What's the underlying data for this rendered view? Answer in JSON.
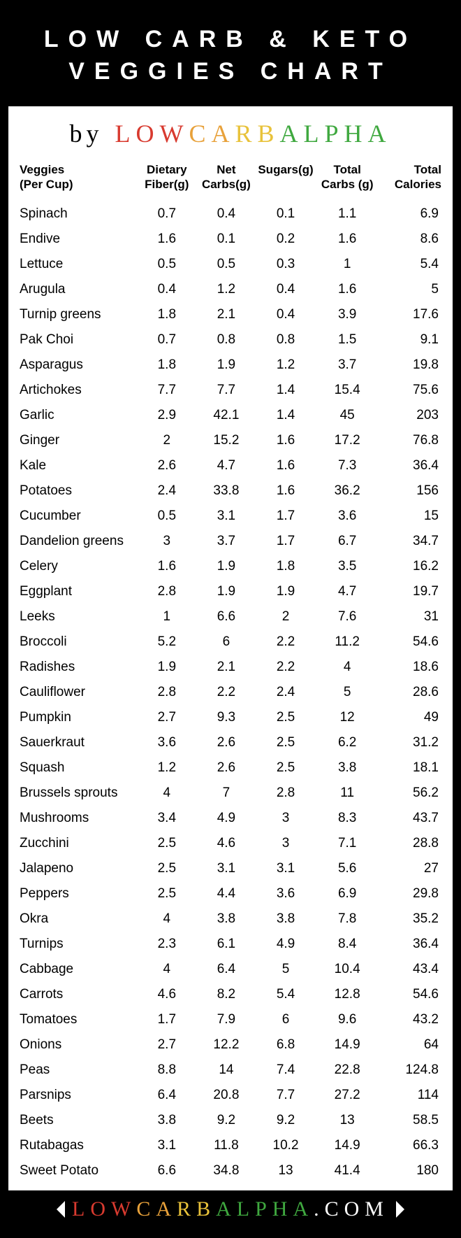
{
  "title": {
    "line1": "LOW CARB & KETO",
    "line2": "VEGGIES CHART"
  },
  "byline": {
    "by": "by",
    "brand_colored": [
      {
        "t": "L",
        "c": "#d83a2f"
      },
      {
        "t": "O",
        "c": "#d83a2f"
      },
      {
        "t": "W",
        "c": "#d83a2f"
      },
      {
        "t": "C",
        "c": "#e8a13a"
      },
      {
        "t": "A",
        "c": "#e8a13a"
      },
      {
        "t": "R",
        "c": "#e8c23a"
      },
      {
        "t": "B",
        "c": "#e8c23a"
      },
      {
        "t": "A",
        "c": "#3fa83f"
      },
      {
        "t": "L",
        "c": "#3fa83f"
      },
      {
        "t": "P",
        "c": "#3fa83f"
      },
      {
        "t": "H",
        "c": "#3fa83f"
      },
      {
        "t": "A",
        "c": "#3fa83f"
      }
    ]
  },
  "columns": [
    {
      "key": "name",
      "label": "Veggies\n(Per Cup)",
      "align": "left",
      "width": "28%"
    },
    {
      "key": "fiber",
      "label": "Dietary\nFiber(g)",
      "align": "center",
      "width": "14%"
    },
    {
      "key": "net",
      "label": "Net\nCarbs(g)",
      "align": "center",
      "width": "14%"
    },
    {
      "key": "sugars",
      "label": "Sugars(g)",
      "align": "center",
      "width": "14%"
    },
    {
      "key": "total",
      "label": "Total\nCarbs (g)",
      "align": "center",
      "width": "15%"
    },
    {
      "key": "cal",
      "label": "Total\nCalories",
      "align": "right",
      "width": "15%"
    }
  ],
  "rows": [
    {
      "name": "Spinach",
      "fiber": "0.7",
      "net": "0.4",
      "sugars": "0.1",
      "total": "1.1",
      "cal": "6.9"
    },
    {
      "name": "Endive",
      "fiber": "1.6",
      "net": "0.1",
      "sugars": "0.2",
      "total": "1.6",
      "cal": "8.6"
    },
    {
      "name": "Lettuce",
      "fiber": "0.5",
      "net": "0.5",
      "sugars": "0.3",
      "total": "1",
      "cal": "5.4"
    },
    {
      "name": "Arugula",
      "fiber": "0.4",
      "net": "1.2",
      "sugars": "0.4",
      "total": "1.6",
      "cal": "5"
    },
    {
      "name": "Turnip greens",
      "fiber": "1.8",
      "net": "2.1",
      "sugars": "0.4",
      "total": "3.9",
      "cal": "17.6"
    },
    {
      "name": "Pak Choi",
      "fiber": "0.7",
      "net": "0.8",
      "sugars": "0.8",
      "total": "1.5",
      "cal": "9.1"
    },
    {
      "name": "Asparagus",
      "fiber": "1.8",
      "net": "1.9",
      "sugars": "1.2",
      "total": "3.7",
      "cal": "19.8"
    },
    {
      "name": "Artichokes",
      "fiber": "7.7",
      "net": "7.7",
      "sugars": "1.4",
      "total": "15.4",
      "cal": "75.6"
    },
    {
      "name": "Garlic",
      "fiber": "2.9",
      "net": "42.1",
      "sugars": "1.4",
      "total": "45",
      "cal": "203"
    },
    {
      "name": "Ginger",
      "fiber": "2",
      "net": "15.2",
      "sugars": "1.6",
      "total": "17.2",
      "cal": "76.8"
    },
    {
      "name": "Kale",
      "fiber": "2.6",
      "net": "4.7",
      "sugars": "1.6",
      "total": "7.3",
      "cal": "36.4"
    },
    {
      "name": "Potatoes",
      "fiber": "2.4",
      "net": "33.8",
      "sugars": "1.6",
      "total": "36.2",
      "cal": "156"
    },
    {
      "name": "Cucumber",
      "fiber": "0.5",
      "net": "3.1",
      "sugars": "1.7",
      "total": "3.6",
      "cal": "15"
    },
    {
      "name": "Dandelion greens",
      "fiber": "3",
      "net": "3.7",
      "sugars": "1.7",
      "total": "6.7",
      "cal": "34.7"
    },
    {
      "name": "Celery",
      "fiber": "1.6",
      "net": "1.9",
      "sugars": "1.8",
      "total": "3.5",
      "cal": "16.2"
    },
    {
      "name": "Eggplant",
      "fiber": "2.8",
      "net": "1.9",
      "sugars": "1.9",
      "total": "4.7",
      "cal": "19.7"
    },
    {
      "name": "Leeks",
      "fiber": "1",
      "net": "6.6",
      "sugars": "2",
      "total": "7.6",
      "cal": "31"
    },
    {
      "name": "Broccoli",
      "fiber": "5.2",
      "net": "6",
      "sugars": "2.2",
      "total": "11.2",
      "cal": "54.6"
    },
    {
      "name": "Radishes",
      "fiber": "1.9",
      "net": "2.1",
      "sugars": "2.2",
      "total": "4",
      "cal": "18.6"
    },
    {
      "name": "Cauliflower",
      "fiber": "2.8",
      "net": "2.2",
      "sugars": "2.4",
      "total": "5",
      "cal": "28.6"
    },
    {
      "name": "Pumpkin",
      "fiber": "2.7",
      "net": "9.3",
      "sugars": "2.5",
      "total": "12",
      "cal": "49"
    },
    {
      "name": "Sauerkraut",
      "fiber": "3.6",
      "net": "2.6",
      "sugars": "2.5",
      "total": "6.2",
      "cal": "31.2"
    },
    {
      "name": "Squash",
      "fiber": "1.2",
      "net": "2.6",
      "sugars": "2.5",
      "total": "3.8",
      "cal": "18.1"
    },
    {
      "name": "Brussels sprouts",
      "fiber": "4",
      "net": "7",
      "sugars": "2.8",
      "total": "11",
      "cal": "56.2"
    },
    {
      "name": "Mushrooms",
      "fiber": "3.4",
      "net": "4.9",
      "sugars": "3",
      "total": "8.3",
      "cal": "43.7"
    },
    {
      "name": "Zucchini",
      "fiber": "2.5",
      "net": "4.6",
      "sugars": "3",
      "total": "7.1",
      "cal": "28.8"
    },
    {
      "name": "Jalapeno",
      "fiber": "2.5",
      "net": "3.1",
      "sugars": "3.1",
      "total": "5.6",
      "cal": "27"
    },
    {
      "name": "Peppers",
      "fiber": "2.5",
      "net": "4.4",
      "sugars": "3.6",
      "total": "6.9",
      "cal": "29.8"
    },
    {
      "name": "Okra",
      "fiber": "4",
      "net": "3.8",
      "sugars": "3.8",
      "total": "7.8",
      "cal": "35.2"
    },
    {
      "name": "Turnips",
      "fiber": "2.3",
      "net": "6.1",
      "sugars": "4.9",
      "total": "8.4",
      "cal": "36.4"
    },
    {
      "name": "Cabbage",
      "fiber": "4",
      "net": "6.4",
      "sugars": "5",
      "total": "10.4",
      "cal": "43.4"
    },
    {
      "name": "Carrots",
      "fiber": "4.6",
      "net": "8.2",
      "sugars": "5.4",
      "total": "12.8",
      "cal": "54.6"
    },
    {
      "name": "Tomatoes",
      "fiber": "1.7",
      "net": "7.9",
      "sugars": "6",
      "total": "9.6",
      "cal": "43.2"
    },
    {
      "name": "Onions",
      "fiber": "2.7",
      "net": "12.2",
      "sugars": "6.8",
      "total": "14.9",
      "cal": "64"
    },
    {
      "name": "Peas",
      "fiber": "8.8",
      "net": "14",
      "sugars": "7.4",
      "total": "22.8",
      "cal": "124.8"
    },
    {
      "name": "Parsnips",
      "fiber": "6.4",
      "net": "20.8",
      "sugars": "7.7",
      "total": "27.2",
      "cal": "114"
    },
    {
      "name": "Beets",
      "fiber": "3.8",
      "net": "9.2",
      "sugars": "9.2",
      "total": "13",
      "cal": "58.5"
    },
    {
      "name": "Rutabagas",
      "fiber": "3.1",
      "net": "11.8",
      "sugars": "10.2",
      "total": "14.9",
      "cal": "66.3"
    },
    {
      "name": "Sweet Potato",
      "fiber": "6.6",
      "net": "34.8",
      "sugars": "13",
      "total": "41.4",
      "cal": "180"
    }
  ],
  "footer": {
    "brand_colored": [
      {
        "t": "L",
        "c": "#d83a2f"
      },
      {
        "t": "O",
        "c": "#d83a2f"
      },
      {
        "t": "W",
        "c": "#d83a2f"
      },
      {
        "t": "C",
        "c": "#e8a13a"
      },
      {
        "t": "A",
        "c": "#e8a13a"
      },
      {
        "t": "R",
        "c": "#e8c23a"
      },
      {
        "t": "B",
        "c": "#e8c23a"
      },
      {
        "t": "A",
        "c": "#3fa83f"
      },
      {
        "t": "L",
        "c": "#3fa83f"
      },
      {
        "t": "P",
        "c": "#3fa83f"
      },
      {
        "t": "H",
        "c": "#3fa83f"
      },
      {
        "t": "A",
        "c": "#3fa83f"
      }
    ],
    "suffix": ".COM"
  },
  "styling": {
    "border_color": "#000000",
    "title_bg": "#000000",
    "title_color": "#ffffff",
    "title_fontsize": 34,
    "title_letter_spacing": 14,
    "byline_fontsize": 36,
    "header_fontsize": 17,
    "cell_fontsize": 19,
    "row_padding_v": 7,
    "footer_bg": "#000000",
    "footer_fontsize": 30
  }
}
